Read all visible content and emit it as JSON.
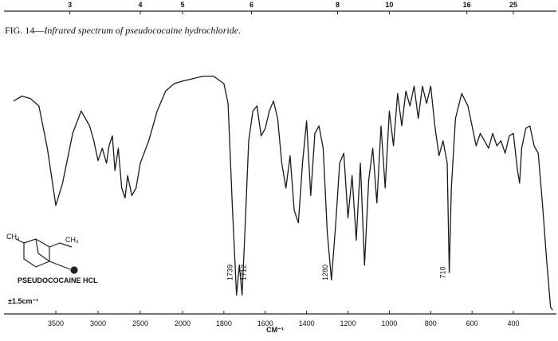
{
  "chart_data": {
    "type": "line",
    "caption_prefix": "FIG. 14—",
    "caption_italic": "Infrared spectrum of pseudococaine hydrochloride.",
    "compound_label": "PSEUDOCOCAINE HCL",
    "resolution_label": "±1.5cm⁻¹",
    "structure_labels": [
      "CH₃",
      "CH₃"
    ],
    "xlabel": "CM⁻¹",
    "xlim": [
      4000,
      200
    ],
    "xticks": [
      3500,
      3000,
      2500,
      2000,
      1800,
      1600,
      1400,
      1200,
      1000,
      800,
      600,
      400
    ],
    "top_xticks": [
      3,
      4,
      5,
      6,
      8,
      10,
      16,
      25
    ],
    "ylim": [
      0,
      100
    ],
    "peak_labels": [
      1739,
      1712,
      1280,
      710
    ],
    "x": [
      4000,
      3900,
      3800,
      3700,
      3600,
      3500,
      3420,
      3300,
      3200,
      3100,
      3050,
      3000,
      2950,
      2900,
      2870,
      2830,
      2800,
      2760,
      2720,
      2680,
      2650,
      2600,
      2550,
      2500,
      2400,
      2300,
      2200,
      2100,
      2000,
      1950,
      1900,
      1850,
      1800,
      1780,
      1760,
      1739,
      1725,
      1712,
      1700,
      1680,
      1660,
      1640,
      1620,
      1600,
      1580,
      1560,
      1540,
      1520,
      1500,
      1480,
      1460,
      1440,
      1420,
      1400,
      1380,
      1360,
      1340,
      1320,
      1300,
      1280,
      1260,
      1240,
      1220,
      1200,
      1180,
      1160,
      1140,
      1120,
      1100,
      1080,
      1060,
      1040,
      1020,
      1000,
      980,
      960,
      940,
      920,
      900,
      880,
      860,
      840,
      820,
      800,
      780,
      760,
      740,
      720,
      710,
      700,
      680,
      650,
      620,
      600,
      580,
      560,
      540,
      520,
      500,
      480,
      460,
      440,
      420,
      400,
      380,
      370,
      360,
      340,
      320,
      300,
      280,
      260,
      240,
      220,
      210
    ],
    "series": [
      {
        "name": "Pseudococaine HCl",
        "color": "#1a1a1a",
        "values": [
          85,
          87,
          86,
          83,
          66,
          43,
          52,
          72,
          81,
          75,
          69,
          61,
          66,
          60,
          67,
          71,
          57,
          66,
          50,
          46,
          55,
          47,
          50,
          60,
          69,
          81,
          89,
          92,
          93,
          94,
          95,
          95,
          92,
          84,
          44,
          7,
          19,
          7,
          29,
          69,
          81,
          83,
          71,
          74,
          81,
          85,
          78,
          60,
          50,
          63,
          41,
          36,
          60,
          77,
          47,
          72,
          75,
          66,
          32,
          13,
          35,
          60,
          64,
          38,
          55,
          29,
          60,
          19,
          53,
          66,
          44,
          75,
          50,
          81,
          67,
          88,
          75,
          89,
          83,
          91,
          78,
          91,
          84,
          91,
          75,
          63,
          69,
          60,
          16,
          50,
          78,
          88,
          83,
          75,
          67,
          72,
          69,
          66,
          72,
          67,
          69,
          64,
          71,
          72,
          57,
          52,
          66,
          74,
          75,
          67,
          64,
          44,
          22,
          2,
          1
        ]
      }
    ]
  }
}
